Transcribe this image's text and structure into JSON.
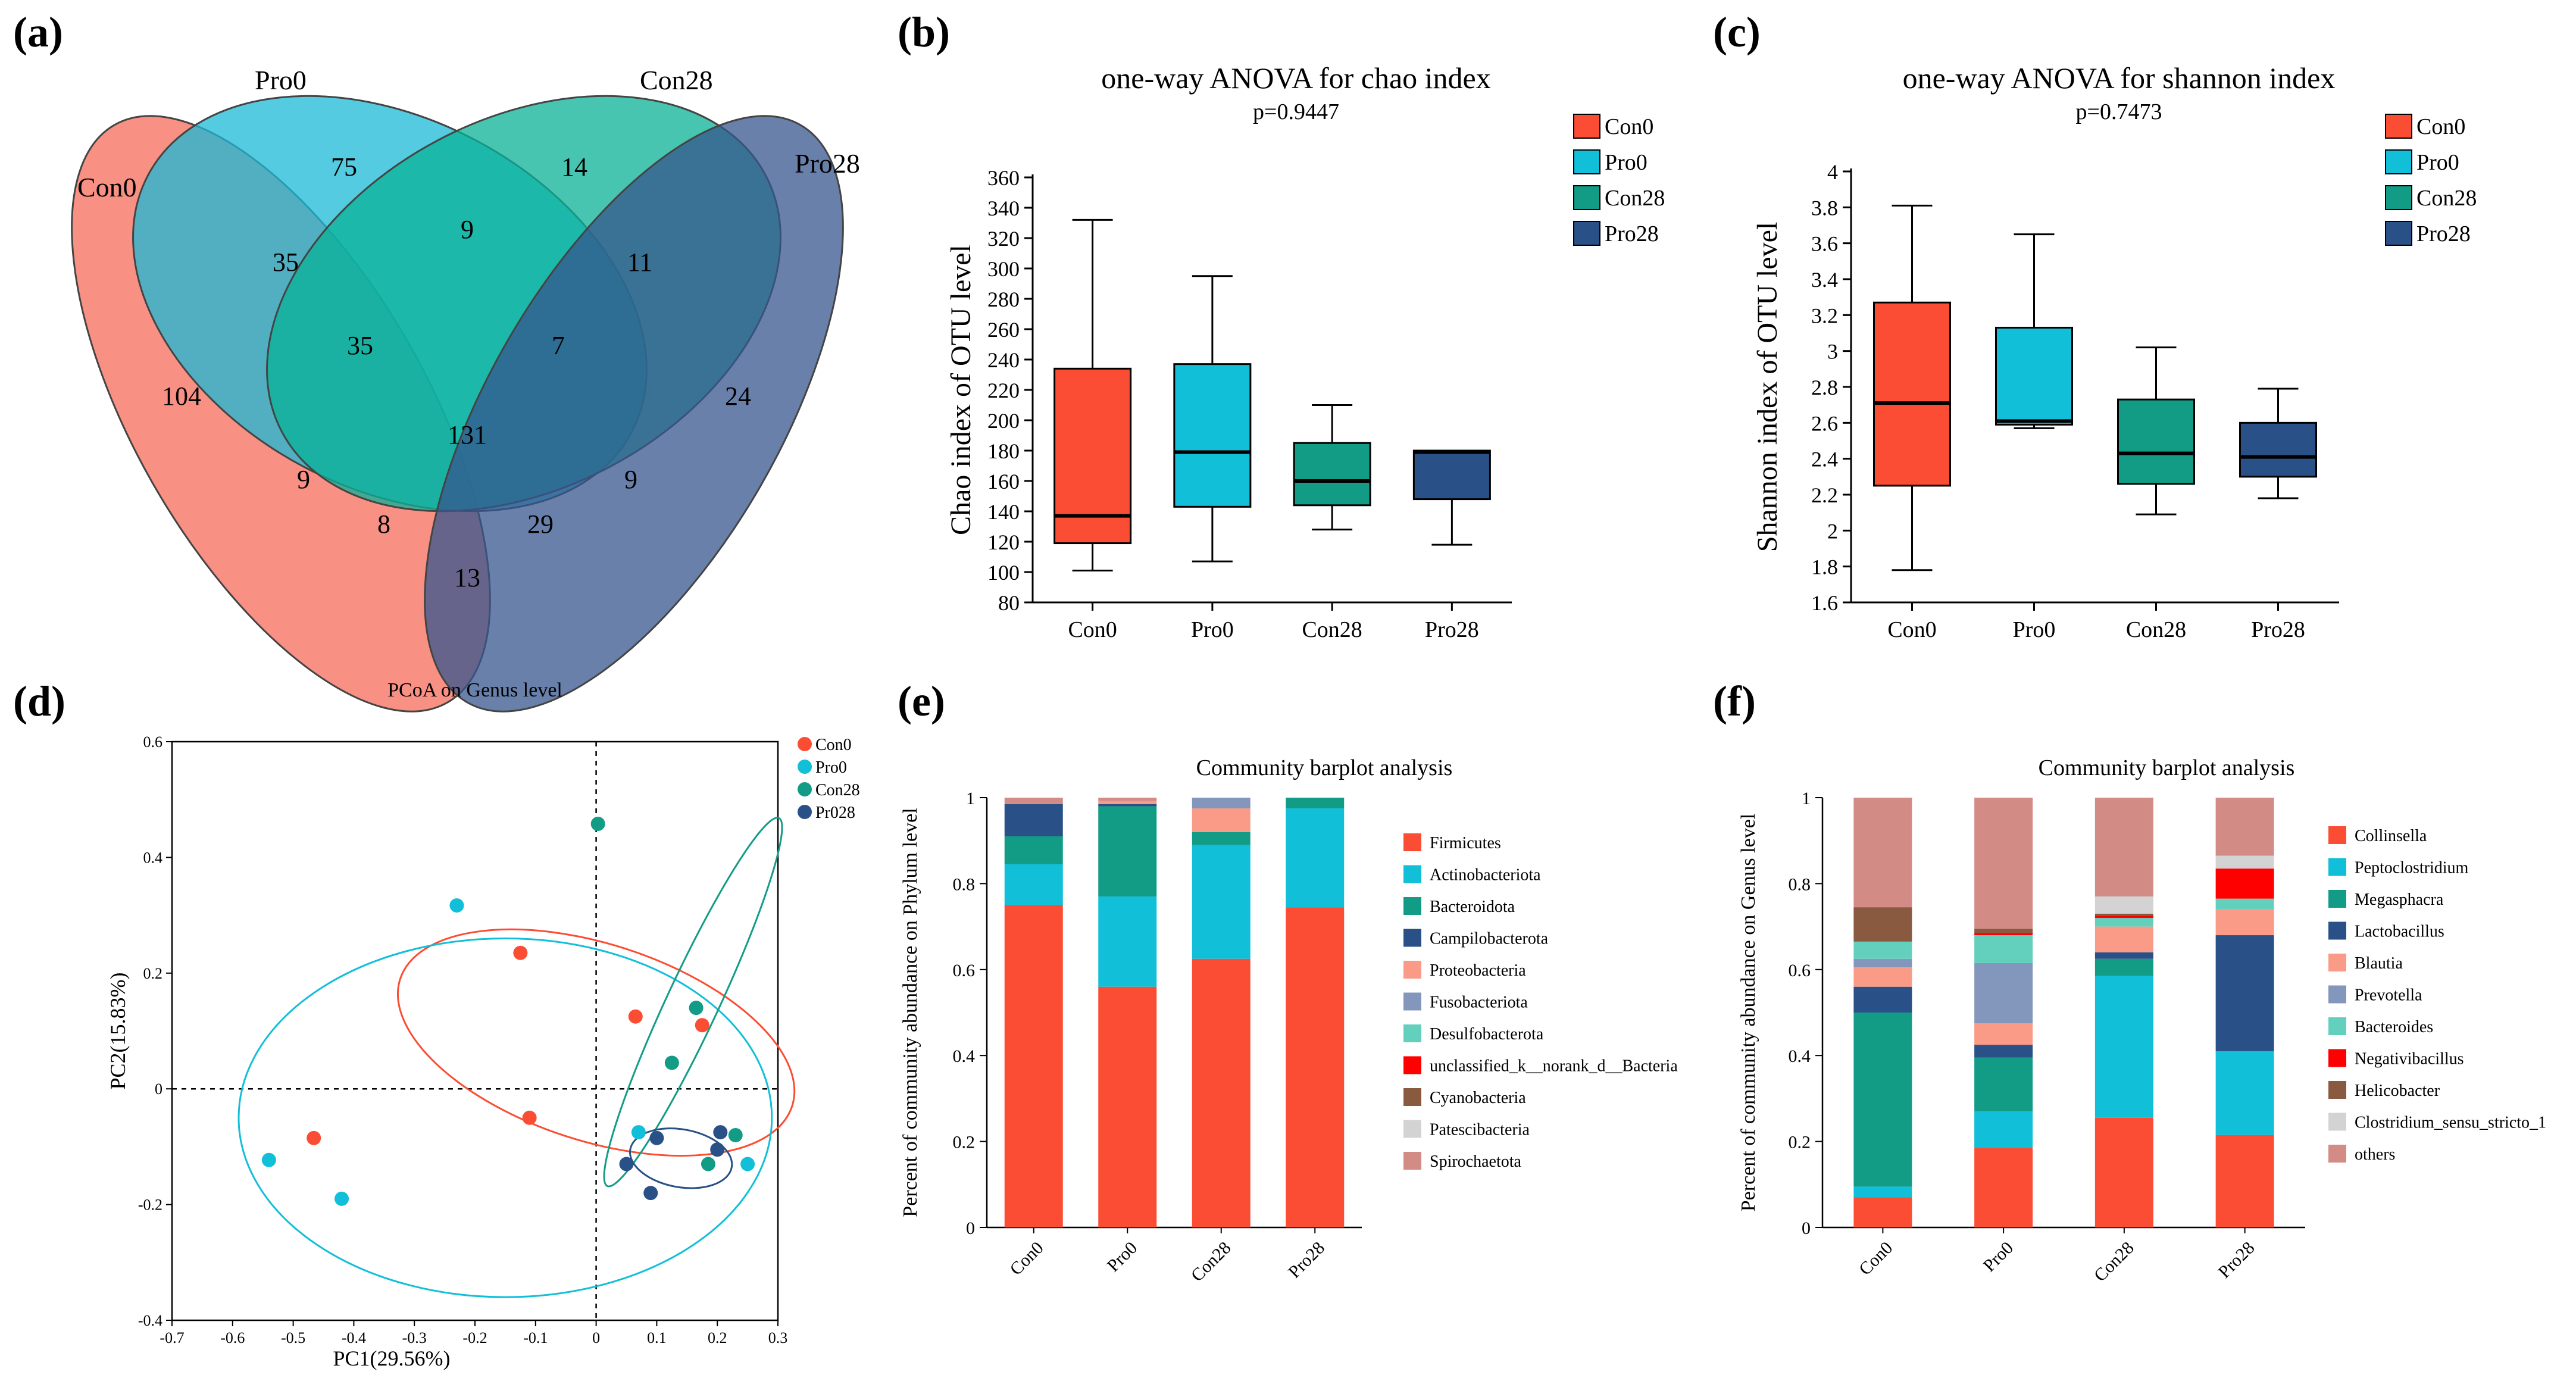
{
  "colors": {
    "con0": "#fb4d33",
    "pro0": "#11bfd8",
    "con28": "#129c86",
    "pro28": "#2a5187",
    "venn_con0": "#f66b59",
    "venn_pro0": "#1bb9d6",
    "venn_con28": "#09b197",
    "venn_pro28": "#35558d"
  },
  "panels": {
    "a": "(a)",
    "b": "(b)",
    "c": "(c)",
    "d": "(d)",
    "e": "(e)",
    "f": "(f)"
  },
  "chart_data": [
    {
      "id": "a",
      "type": "venn",
      "sets": [
        "Con0",
        "Pro0",
        "Con28",
        "Pro28"
      ],
      "regions": [
        {
          "sets": [
            "Con0"
          ],
          "value": "104"
        },
        {
          "sets": [
            "Pro0"
          ],
          "value": "75"
        },
        {
          "sets": [
            "Con28"
          ],
          "value": "14"
        },
        {
          "sets": [
            "Pro28"
          ],
          "value": "24"
        },
        {
          "sets": [
            "Con0",
            "Pro0"
          ],
          "value": "35"
        },
        {
          "sets": [
            "Pro0",
            "Con28"
          ],
          "value": "9"
        },
        {
          "sets": [
            "Con28",
            "Pro28"
          ],
          "value": "11"
        },
        {
          "sets": [
            "Con0",
            "Pro0",
            "Con28"
          ],
          "value": "35"
        },
        {
          "sets": [
            "Pro0",
            "Con28",
            "Pro28"
          ],
          "value": "7"
        },
        {
          "sets": [
            "Con0",
            "Pro0",
            "Con28",
            "Pro28"
          ],
          "value": "131"
        },
        {
          "sets": [
            "Con0",
            "Con28"
          ],
          "value": "9"
        },
        {
          "sets": [
            "Pro0",
            "Pro28"
          ],
          "value": "9"
        },
        {
          "sets": [
            "Con0",
            "Con28",
            "Pro28"
          ],
          "value": "8"
        },
        {
          "sets": [
            "Con0",
            "Pro0",
            "Pro28"
          ],
          "value": "29"
        },
        {
          "sets": [
            "Con0",
            "Pro28"
          ],
          "value": "13"
        }
      ]
    },
    {
      "id": "b",
      "type": "box",
      "title": "one-way ANOVA for chao index",
      "subtitle": "p=0.9447",
      "ylabel": "Chao index of OTU level",
      "ylim": [
        80,
        360
      ],
      "yticks": [
        "80",
        "100",
        "120",
        "140",
        "160",
        "180",
        "200",
        "220",
        "240",
        "260",
        "280",
        "300",
        "320",
        "340",
        "360"
      ],
      "categories": [
        "Con0",
        "Pro0",
        "Con28",
        "Pro28"
      ],
      "boxes": [
        {
          "min": 101,
          "q1": 119,
          "median": 137,
          "q3": 234,
          "max": 332
        },
        {
          "min": 107,
          "q1": 143,
          "median": 179,
          "q3": 237,
          "max": 295
        },
        {
          "min": 128,
          "q1": 144,
          "median": 160,
          "q3": 185,
          "max": 210
        },
        {
          "min": 118,
          "q1": 148,
          "median": 179,
          "q3": 180,
          "max": 180
        }
      ],
      "legend": [
        "Con0",
        "Pro0",
        "Con28",
        "Pro28"
      ]
    },
    {
      "id": "c",
      "type": "box",
      "title": "one-way ANOVA for shannon index",
      "subtitle": "p=0.7473",
      "ylabel": "Shannon index of OTU level",
      "ylim": [
        1.6,
        4.0
      ],
      "yticks": [
        "1.6",
        "1.8",
        "2",
        "2.2",
        "2.4",
        "2.6",
        "2.8",
        "3",
        "3.2",
        "3.4",
        "3.6",
        "3.8",
        "4"
      ],
      "categories": [
        "Con0",
        "Pro0",
        "Con28",
        "Pro28"
      ],
      "boxes": [
        {
          "min": 1.78,
          "q1": 2.25,
          "median": 2.71,
          "q3": 3.27,
          "max": 3.81
        },
        {
          "min": 2.57,
          "q1": 2.59,
          "median": 2.61,
          "q3": 3.13,
          "max": 3.65
        },
        {
          "min": 2.09,
          "q1": 2.26,
          "median": 2.43,
          "q3": 2.73,
          "max": 3.02
        },
        {
          "min": 2.18,
          "q1": 2.3,
          "median": 2.41,
          "q3": 2.6,
          "max": 2.79
        }
      ],
      "legend": [
        "Con0",
        "Pro0",
        "Con28",
        "Pro28"
      ]
    },
    {
      "id": "d",
      "type": "scatter",
      "title": "PCoA on Genus level",
      "xlabel": "PC1(29.56%)",
      "ylabel": "PC2(15.83%)",
      "xlim": [
        -0.7,
        0.3
      ],
      "ylim": [
        -0.4,
        0.6
      ],
      "xticks": [
        "-0.7",
        "-0.6",
        "-0.5",
        "-0.4",
        "-0.3",
        "-0.2",
        "-0.1",
        "0",
        "0.1",
        "0.2",
        "0.3"
      ],
      "yticks": [
        "-0.4",
        "-0.2",
        "0",
        "0.2",
        "0.4",
        "0.6"
      ],
      "legend": [
        "Con0",
        "Pro0",
        "Con28",
        "Pr028"
      ],
      "series": [
        {
          "name": "Con0",
          "points": [
            [
              -0.466,
              -0.085
            ],
            [
              -0.125,
              0.235
            ],
            [
              -0.11,
              -0.05
            ],
            [
              0.065,
              0.125
            ],
            [
              0.175,
              0.11
            ]
          ]
        },
        {
          "name": "Pro0",
          "points": [
            [
              -0.54,
              -0.123
            ],
            [
              -0.42,
              -0.19
            ],
            [
              -0.23,
              0.317
            ],
            [
              0.07,
              -0.075
            ],
            [
              0.25,
              -0.13
            ]
          ]
        },
        {
          "name": "Con28",
          "points": [
            [
              0.003,
              0.458
            ],
            [
              0.165,
              0.14
            ],
            [
              0.125,
              0.045
            ],
            [
              0.23,
              -0.08
            ],
            [
              0.185,
              -0.13
            ]
          ]
        },
        {
          "name": "Pr028",
          "points": [
            [
              0.05,
              -0.13
            ],
            [
              0.1,
              -0.085
            ],
            [
              0.09,
              -0.18
            ],
            [
              0.2,
              -0.105
            ],
            [
              0.205,
              -0.075
            ]
          ]
        }
      ],
      "ellipses": [
        {
          "name": "Con0",
          "cx": 0.0,
          "cy": 0.08,
          "rx": 0.34,
          "ry": 0.17,
          "angle": 18
        },
        {
          "name": "Pro0",
          "cx": -0.15,
          "cy": -0.05,
          "rx": 0.44,
          "ry": 0.31,
          "angle": 0
        },
        {
          "name": "Con28",
          "cx": 0.16,
          "cy": 0.15,
          "rx": 0.335,
          "ry": 0.045,
          "angle": -65
        },
        {
          "name": "Pr028",
          "cx": 0.14,
          "cy": -0.12,
          "rx": 0.085,
          "ry": 0.05,
          "angle": 10
        }
      ]
    },
    {
      "id": "e",
      "type": "stacked_bar",
      "title": "Community barplot analysis",
      "ylabel": "Percent of community abundance on Phylum level",
      "ylim": [
        0,
        1
      ],
      "yticks": [
        "0",
        "0.2",
        "0.4",
        "0.6",
        "0.8",
        "1"
      ],
      "categories": [
        "Con0",
        "Pro0",
        "Con28",
        "Pro28"
      ],
      "series": [
        {
          "name": "Firmicutes",
          "color": "#fb4d33",
          "values": [
            0.75,
            0.56,
            0.625,
            0.745
          ]
        },
        {
          "name": "Actinobacteriota",
          "color": "#11bfd8",
          "values": [
            0.095,
            0.21,
            0.265,
            0.23
          ]
        },
        {
          "name": "Bacteroidota",
          "color": "#129c86",
          "values": [
            0.065,
            0.21,
            0.03,
            0.025
          ]
        },
        {
          "name": "Campilobacterota",
          "color": "#2a5187",
          "values": [
            0.075,
            0.005,
            0.0,
            0.0
          ]
        },
        {
          "name": "Proteobacteria",
          "color": "#f99b86",
          "values": [
            0.0,
            0.007,
            0.055,
            0.0
          ]
        },
        {
          "name": "Fusobacteriota",
          "color": "#8396bb",
          "values": [
            0.0,
            0.0,
            0.025,
            0.0
          ]
        },
        {
          "name": "Desulfobacterota",
          "color": "#63d0be",
          "values": [
            0.0,
            0.0,
            0.0,
            0.0
          ]
        },
        {
          "name": "unclassified_k__norank_d__Bacteria",
          "color": "#fe0000",
          "values": [
            0.0,
            0.0,
            0.0,
            0.0
          ]
        },
        {
          "name": "Cyanobacteria",
          "color": "#8a5a40",
          "values": [
            0.0,
            0.0,
            0.0,
            0.0
          ]
        },
        {
          "name": "Patescibacteria",
          "color": "#d3d3d3",
          "values": [
            0.0,
            0.0,
            0.0,
            0.0
          ]
        },
        {
          "name": "Spirochaetota",
          "color": "#d38b86",
          "values": [
            0.015,
            0.008,
            0.0,
            0.0
          ]
        }
      ]
    },
    {
      "id": "f",
      "type": "stacked_bar",
      "title": "Community barplot analysis",
      "ylabel": "Percent of community abundance on Genus level",
      "ylim": [
        0,
        1
      ],
      "yticks": [
        "0",
        "0.2",
        "0.4",
        "0.6",
        "0.8",
        "1"
      ],
      "categories": [
        "Con0",
        "Pro0",
        "Con28",
        "Pro28"
      ],
      "series": [
        {
          "name": "Collinsella",
          "color": "#fb4d33",
          "values": [
            0.07,
            0.185,
            0.255,
            0.215
          ]
        },
        {
          "name": "Peptoclostridium",
          "color": "#11bfd8",
          "values": [
            0.025,
            0.085,
            0.33,
            0.195
          ]
        },
        {
          "name": "Megasphacra",
          "color": "#129c86",
          "values": [
            0.405,
            0.125,
            0.04,
            0.0
          ]
        },
        {
          "name": "Lactobacillus",
          "color": "#2a5187",
          "values": [
            0.06,
            0.03,
            0.015,
            0.27
          ]
        },
        {
          "name": "Blautia",
          "color": "#f99b86",
          "values": [
            0.045,
            0.05,
            0.06,
            0.06
          ]
        },
        {
          "name": "Prevotella",
          "color": "#8396bb",
          "values": [
            0.02,
            0.14,
            0.0,
            0.0
          ]
        },
        {
          "name": "Bacteroides",
          "color": "#63d0be",
          "values": [
            0.04,
            0.065,
            0.02,
            0.025
          ]
        },
        {
          "name": "Negativibacillus",
          "color": "#fe0000",
          "values": [
            0.0,
            0.005,
            0.005,
            0.07
          ]
        },
        {
          "name": "Helicobacter",
          "color": "#8a5a40",
          "values": [
            0.08,
            0.01,
            0.005,
            0.0
          ]
        },
        {
          "name": "Clostridium_sensu_stricto_1",
          "color": "#d3d3d3",
          "values": [
            0.0,
            0.0,
            0.04,
            0.03
          ]
        },
        {
          "name": "others",
          "color": "#d38b86",
          "values": [
            0.255,
            0.305,
            0.23,
            0.135
          ]
        }
      ]
    }
  ]
}
